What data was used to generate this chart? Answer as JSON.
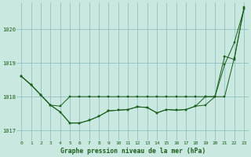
{
  "bg_color": "#c8e8e0",
  "grid_color": "#88bbbb",
  "line_color": "#1a5c1a",
  "title": "Graphe pression niveau de la mer (hPa)",
  "xlim_min": -0.5,
  "xlim_max": 23.5,
  "ylim_min": 1016.7,
  "ylim_max": 1020.8,
  "yticks": [
    1017,
    1018,
    1019,
    1020
  ],
  "xticks": [
    0,
    1,
    2,
    3,
    4,
    5,
    6,
    7,
    8,
    9,
    10,
    11,
    12,
    13,
    14,
    15,
    16,
    17,
    18,
    19,
    20,
    21,
    22,
    23
  ],
  "series": [
    [
      1018.6,
      1018.35,
      1018.05,
      1017.75,
      1017.55,
      1017.22,
      1017.22,
      1017.3,
      1017.42,
      1017.58,
      1017.6,
      1017.62,
      1017.7,
      1017.68,
      1017.52,
      1017.62,
      1017.6,
      1017.62,
      1017.72,
      1017.75,
      1018.0,
      1018.95,
      1019.6,
      1020.6
    ],
    [
      1018.6,
      1018.35,
      1018.05,
      1017.75,
      1017.72,
      1018.0,
      1018.0,
      1018.0,
      1018.0,
      1018.0,
      1018.0,
      1018.0,
      1018.0,
      1018.0,
      1018.0,
      1018.0,
      1018.0,
      1018.0,
      1018.0,
      1018.0,
      1018.0,
      1018.0,
      1019.15,
      1020.6
    ],
    [
      1018.6,
      1018.35,
      1018.05,
      1017.75,
      1017.55,
      1017.22,
      1017.22,
      1017.3,
      1017.42,
      1017.58,
      1017.6,
      1017.62,
      1017.7,
      1017.68,
      1017.52,
      1017.62,
      1017.6,
      1017.62,
      1017.72,
      1018.0,
      1018.0,
      1019.2,
      1019.1,
      1020.65
    ]
  ],
  "figwidth": 3.2,
  "figheight": 2.0,
  "dpi": 100
}
